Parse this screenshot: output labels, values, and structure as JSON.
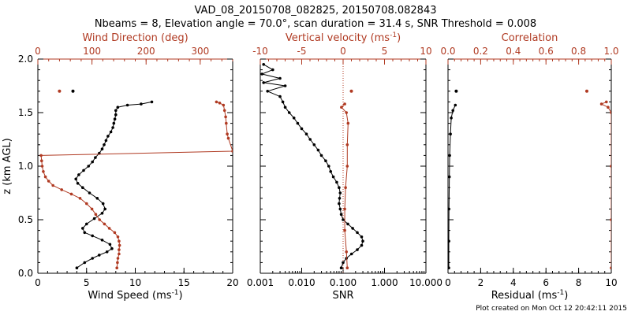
{
  "header": {
    "title": "VAD_08_20150708_082825, 20150708.082843",
    "subtitle": "Nbeams = 8, Elevation angle = 70.0°, scan duration = 31.4 s, SNR Threshold = 0.008"
  },
  "footer": {
    "credit": "Plot created on Mon Oct 12 20:42:11 2015"
  },
  "colors": {
    "primary": "#000000",
    "secondary": "#b03a22"
  },
  "chart_data": [
    {
      "type": "line",
      "ylabel": "z (km AGL)",
      "ylim": [
        0,
        2
      ],
      "yticks": [
        "0.0",
        "0.5",
        "1.0",
        "1.5",
        "2.0"
      ],
      "bottom_axis": {
        "label": "Wind Speed (ms",
        "label_sup": "-1",
        "label_end": ")",
        "range": [
          0,
          20
        ],
        "ticks": [
          "0",
          "5",
          "10",
          "15",
          "20"
        ]
      },
      "top_axis": {
        "label": "Wind Direction (deg)",
        "range": [
          0,
          360
        ],
        "ticks": [
          "0",
          "100",
          "200",
          "300"
        ]
      },
      "series": [
        {
          "axis": "bottom",
          "points": [
            [
              4,
              0.05
            ],
            [
              4.8,
              0.1
            ],
            [
              5.6,
              0.14
            ],
            [
              6.3,
              0.17
            ],
            [
              7.1,
              0.2
            ],
            [
              7.6,
              0.23
            ],
            [
              7.4,
              0.27
            ],
            [
              6.6,
              0.31
            ],
            [
              5.6,
              0.35
            ],
            [
              4.8,
              0.38
            ],
            [
              4.6,
              0.42
            ],
            [
              5.0,
              0.46
            ],
            [
              5.8,
              0.51
            ],
            [
              6.6,
              0.56
            ],
            [
              6.9,
              0.6
            ],
            [
              6.7,
              0.65
            ],
            [
              6.1,
              0.7
            ],
            [
              5.3,
              0.75
            ],
            [
              4.6,
              0.8
            ],
            [
              4.1,
              0.84
            ],
            [
              3.9,
              0.88
            ],
            [
              4.2,
              0.92
            ],
            [
              4.7,
              0.96
            ],
            [
              5.2,
              1.0
            ],
            [
              5.6,
              1.04
            ],
            [
              5.9,
              1.08
            ],
            [
              6.3,
              1.12
            ],
            [
              6.6,
              1.16
            ],
            [
              6.8,
              1.2
            ],
            [
              7.0,
              1.24
            ],
            [
              7.2,
              1.28
            ],
            [
              7.5,
              1.32
            ],
            [
              7.7,
              1.36
            ],
            [
              7.8,
              1.4
            ],
            [
              7.9,
              1.44
            ],
            [
              8.0,
              1.48
            ],
            [
              8.0,
              1.52
            ],
            [
              8.2,
              1.55
            ],
            [
              9.2,
              1.57
            ],
            [
              10.6,
              1.58
            ],
            [
              11.7,
              1.6
            ]
          ],
          "isolated": [
            [
              3.6,
              1.7
            ]
          ]
        },
        {
          "axis": "top",
          "points": [
            [
              146,
              0.05
            ],
            [
              147,
              0.1
            ],
            [
              148,
              0.14
            ],
            [
              150,
              0.18
            ],
            [
              150,
              0.22
            ],
            [
              151,
              0.26
            ],
            [
              150,
              0.3
            ],
            [
              148,
              0.34
            ],
            [
              142,
              0.38
            ],
            [
              132,
              0.42
            ],
            [
              123,
              0.46
            ],
            [
              114,
              0.5
            ],
            [
              107,
              0.55
            ],
            [
              100,
              0.6
            ],
            [
              90,
              0.65
            ],
            [
              78,
              0.7
            ],
            [
              62,
              0.74
            ],
            [
              44,
              0.78
            ],
            [
              28,
              0.82
            ],
            [
              20,
              0.86
            ],
            [
              14,
              0.9
            ],
            [
              10,
              0.95
            ],
            [
              8,
              1.0
            ],
            [
              7,
              1.05
            ],
            [
              6,
              1.1
            ],
            [
              360,
              1.14
            ],
            [
              352,
              1.26
            ],
            [
              350,
              1.3
            ],
            [
              348,
              1.4
            ],
            [
              347,
              1.46
            ],
            [
              345,
              1.52
            ],
            [
              343,
              1.57
            ],
            [
              336,
              1.59
            ],
            [
              330,
              1.6
            ]
          ],
          "isolated": [
            [
              40,
              1.7
            ]
          ]
        }
      ]
    },
    {
      "type": "line",
      "ylim": [
        0,
        2
      ],
      "bottom_axis": {
        "label": "SNR",
        "scale": "log",
        "range": [
          0.001,
          10
        ],
        "ticks": [
          "0.001",
          "0.010",
          "0.100",
          "1.000",
          "10.000"
        ]
      },
      "top_axis": {
        "label": "Vertical velocity (ms",
        "label_sup": "-1",
        "label_end": ")",
        "range": [
          -10,
          10
        ],
        "ticks": [
          "-10",
          "-5",
          "0",
          "5",
          "10"
        ],
        "zero_line": true
      },
      "series": [
        {
          "axis": "bottom",
          "points": [
            [
              0.09,
              0.05
            ],
            [
              0.1,
              0.1
            ],
            [
              0.12,
              0.14
            ],
            [
              0.16,
              0.18
            ],
            [
              0.22,
              0.22
            ],
            [
              0.28,
              0.26
            ],
            [
              0.3,
              0.3
            ],
            [
              0.28,
              0.34
            ],
            [
              0.22,
              0.38
            ],
            [
              0.17,
              0.42
            ],
            [
              0.13,
              0.46
            ],
            [
              0.1,
              0.5
            ],
            [
              0.09,
              0.55
            ],
            [
              0.085,
              0.6
            ],
            [
              0.08,
              0.65
            ],
            [
              0.082,
              0.7
            ],
            [
              0.085,
              0.75
            ],
            [
              0.08,
              0.8
            ],
            [
              0.07,
              0.85
            ],
            [
              0.058,
              0.9
            ],
            [
              0.05,
              0.95
            ],
            [
              0.045,
              1.0
            ],
            [
              0.038,
              1.05
            ],
            [
              0.03,
              1.1
            ],
            [
              0.025,
              1.15
            ],
            [
              0.02,
              1.2
            ],
            [
              0.016,
              1.25
            ],
            [
              0.013,
              1.3
            ],
            [
              0.01,
              1.35
            ],
            [
              0.008,
              1.4
            ],
            [
              0.0065,
              1.45
            ],
            [
              0.005,
              1.5
            ],
            [
              0.004,
              1.55
            ],
            [
              0.0035,
              1.6
            ],
            [
              0.003,
              1.65
            ],
            [
              0.0015,
              1.7
            ],
            [
              0.004,
              1.75
            ],
            [
              0.0012,
              1.78
            ],
            [
              0.003,
              1.82
            ],
            [
              0.0011,
              1.86
            ],
            [
              0.002,
              1.9
            ],
            [
              0.0012,
              1.95
            ]
          ]
        },
        {
          "axis": "top",
          "points": [
            [
              0.5,
              0.05
            ],
            [
              0.4,
              0.2
            ],
            [
              0.2,
              0.4
            ],
            [
              0.2,
              0.6
            ],
            [
              0.3,
              0.8
            ],
            [
              0.5,
              1.0
            ],
            [
              0.5,
              1.2
            ],
            [
              0.6,
              1.4
            ],
            [
              0.4,
              1.5
            ],
            [
              -0.2,
              1.55
            ],
            [
              0.2,
              1.58
            ]
          ],
          "isolated": [
            [
              1.0,
              1.7
            ]
          ]
        }
      ]
    },
    {
      "type": "line",
      "ylim": [
        0,
        2
      ],
      "bottom_axis": {
        "label": "Residual (ms",
        "label_sup": "-1",
        "label_end": ")",
        "range": [
          0,
          10
        ],
        "ticks": [
          "0",
          "2",
          "4",
          "6",
          "8",
          "10"
        ]
      },
      "top_axis": {
        "label": "Correlation",
        "range": [
          0,
          1
        ],
        "ticks": [
          "0.0",
          "0.2",
          "0.4",
          "0.6",
          "0.8",
          "1.0"
        ]
      },
      "series": [
        {
          "axis": "bottom",
          "points": [
            [
              0.05,
              0.05
            ],
            [
              0.05,
              0.3
            ],
            [
              0.06,
              0.6
            ],
            [
              0.08,
              0.9
            ],
            [
              0.1,
              1.1
            ],
            [
              0.15,
              1.3
            ],
            [
              0.2,
              1.45
            ],
            [
              0.3,
              1.52
            ],
            [
              0.45,
              1.57
            ]
          ],
          "isolated": [
            [
              0.5,
              1.7
            ]
          ]
        },
        {
          "axis": "top",
          "points": [
            [
              1.0,
              0.05
            ],
            [
              1.0,
              0.5
            ],
            [
              1.0,
              1.0
            ],
            [
              1.0,
              1.5
            ],
            [
              0.98,
              1.55
            ],
            [
              0.94,
              1.58
            ],
            [
              0.97,
              1.6
            ]
          ],
          "isolated": [
            [
              0.85,
              1.7
            ]
          ]
        }
      ]
    }
  ]
}
